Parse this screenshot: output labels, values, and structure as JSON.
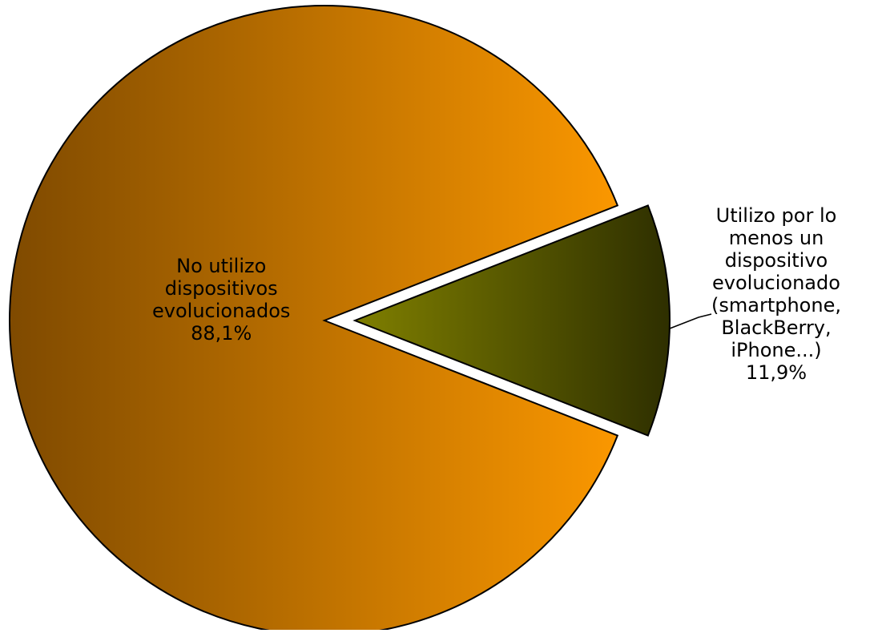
{
  "chart_data": {
    "type": "pie",
    "title": "",
    "slices": [
      {
        "label_lines": [
          "No utilizo",
          "dispositivos",
          "evolucionados"
        ],
        "value": 88.1,
        "value_label": "88,1%",
        "color_dark": "#7f4a00",
        "color_light": "#ff9a00"
      },
      {
        "label_lines": [
          "Utilizo por lo",
          "menos un",
          "dispositivo",
          "evolucionado",
          "(smartphone,",
          "BlackBerry,",
          "iPhone...)"
        ],
        "value": 11.9,
        "value_label": "11,9%",
        "color_dark": "#2e2f00",
        "color_light": "#7f7f00"
      }
    ],
    "legend": "none",
    "exploded_slice": "Utilizo por lo menos un dispositivo evolucionado"
  }
}
